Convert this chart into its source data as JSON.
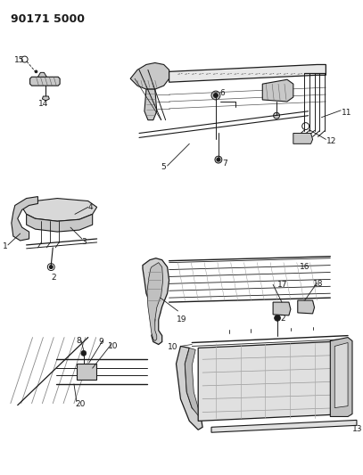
{
  "title": "90171 5000",
  "bg_color": "#ffffff",
  "line_color": "#1a1a1a",
  "gray_fill": "#c8c8c8",
  "dark_fill": "#888888",
  "fig_width": 4.07,
  "fig_height": 5.33,
  "dpi": 100
}
